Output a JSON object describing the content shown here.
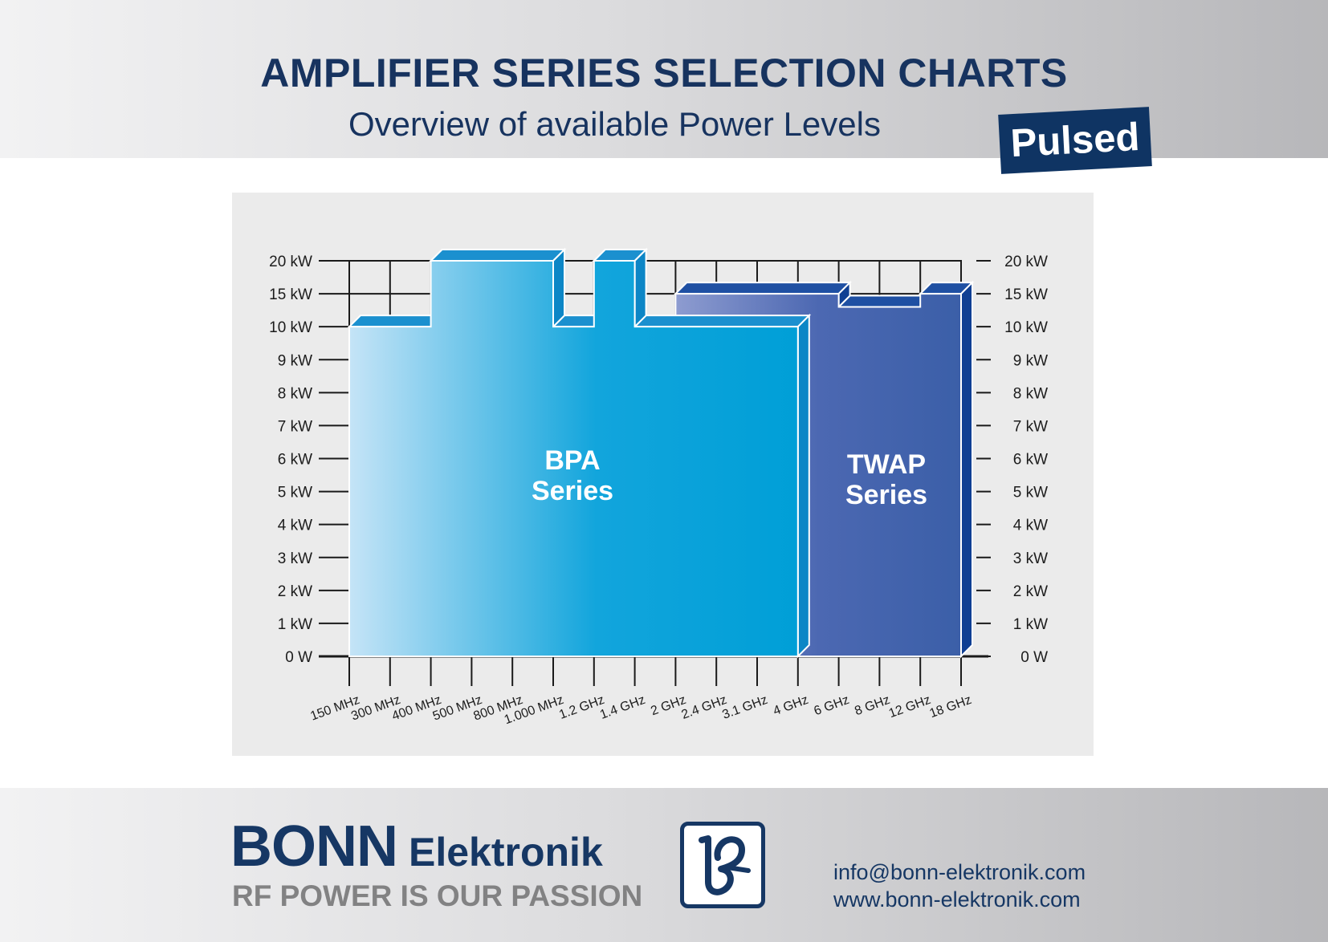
{
  "header": {
    "title": "AMPLIFIER SERIES SELECTION CHARTS",
    "subtitle": "Overview of available Power Levels",
    "badge": "Pulsed"
  },
  "chart_data": {
    "type": "area",
    "y_ticks": [
      "20 kW",
      "15 kW",
      "10 kW",
      "9 kW",
      "8 kW",
      "7 kW",
      "6 kW",
      "5 kW",
      "4 kW",
      "3 kW",
      "2 kW",
      "1 kW",
      "0 W"
    ],
    "y_axis_note": "non-linear power axis (1 kW steps to 10 kW, then 5 kW steps to 20 kW)",
    "x_ticks": [
      "150 MHz",
      "300 MHz",
      "400 MHz",
      "500 MHz",
      "800 MHz",
      "1.000 MHz",
      "1.2 GHz",
      "1.4 GHz",
      "2 GHz",
      "2.4 GHz",
      "3.1 GHz",
      "4 GHz",
      "6 GHz",
      "8 GHz",
      "12 GHz",
      "18 GHz"
    ],
    "series": [
      {
        "name_lines": [
          "BPA",
          "Series"
        ],
        "color": "#0aa0d6",
        "segments": [
          {
            "from": "150 MHz",
            "to": "400 MHz",
            "max_power_kW": 10
          },
          {
            "from": "400 MHz",
            "to": "1.000 MHz",
            "max_power_kW": 20
          },
          {
            "from": "1.000 MHz",
            "to": "1.2 GHz",
            "max_power_kW": 10
          },
          {
            "from": "1.2 GHz",
            "to": "1.4 GHz",
            "max_power_kW": 20
          },
          {
            "from": "1.4 GHz",
            "to": "4 GHz",
            "max_power_kW": 10
          }
        ]
      },
      {
        "name_lines": [
          "TWAP",
          "Series"
        ],
        "color": "#3e62ad",
        "segments": [
          {
            "from": "2 GHz",
            "to": "6 GHz",
            "max_power_kW": 15
          },
          {
            "from": "6 GHz",
            "to": "12 GHz",
            "max_power_kW": 13
          },
          {
            "from": "12 GHz",
            "to": "18 GHz",
            "max_power_kW": 15
          }
        ]
      }
    ]
  },
  "footer": {
    "brand_name": "BONN",
    "brand_sub": "Elektronik",
    "tagline": "RF POWER IS OUR PASSION",
    "email": "info@bonn-elektronik.com",
    "website": "www.bonn-elektronik.com",
    "logo_icon": "bonn-logo-icon",
    "brand_color": "#163764"
  }
}
